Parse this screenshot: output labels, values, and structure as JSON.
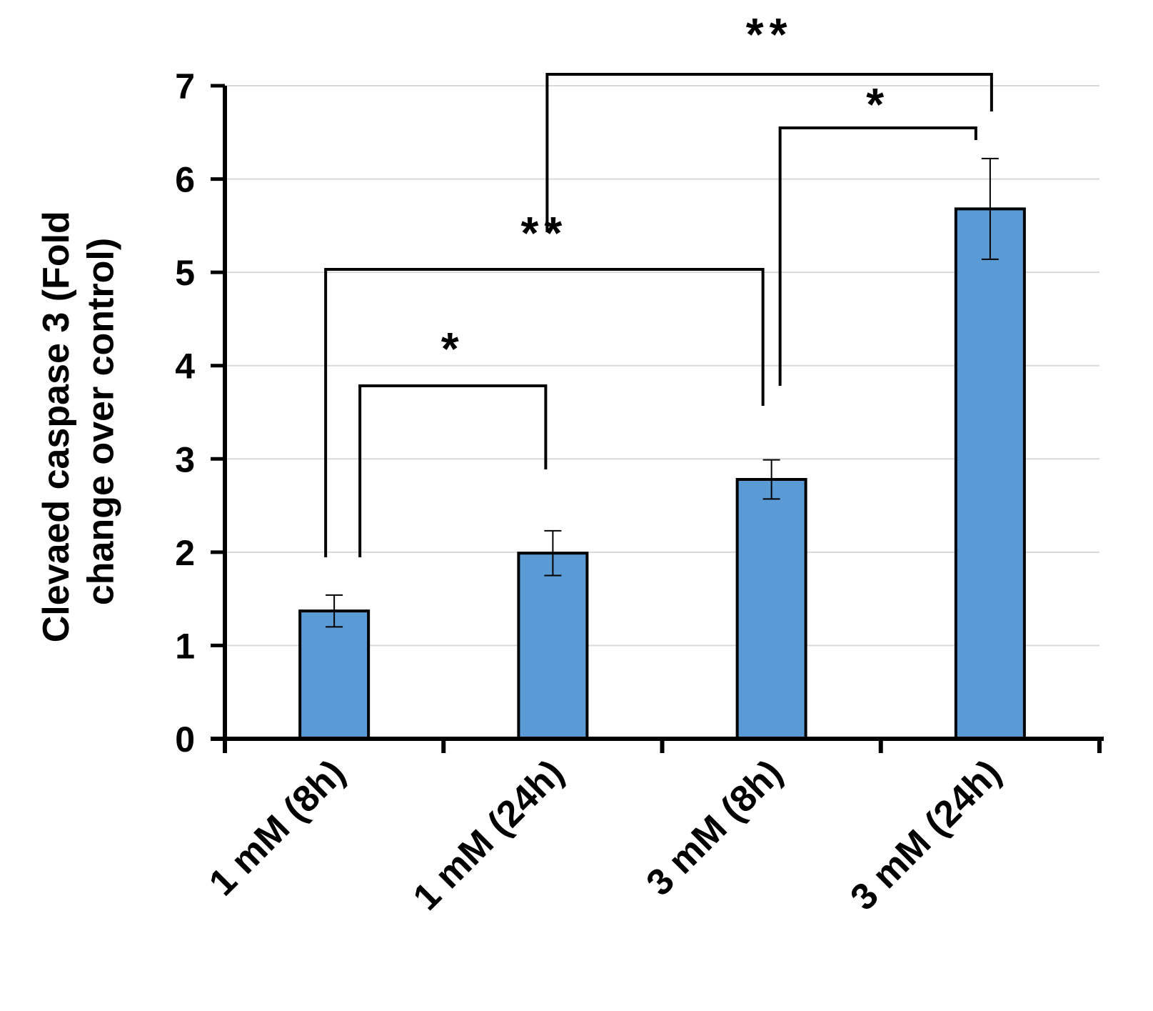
{
  "chart_data": {
    "type": "bar",
    "title": "",
    "xlabel": "",
    "ylabel_lines": [
      "Clevaed caspase 3 (Fold",
      "change over control)"
    ],
    "categories": [
      "1 mM (8h)",
      "1 mM (24h)",
      "3 mM (8h)",
      "3 mM (24h)"
    ],
    "values": [
      1.37,
      1.99,
      2.78,
      5.68
    ],
    "errors": [
      0.17,
      0.24,
      0.21,
      0.54
    ],
    "ylim": [
      0,
      7
    ],
    "yticks": [
      "0",
      "1",
      "2",
      "3",
      "4",
      "5",
      "6",
      "7"
    ],
    "grid": true,
    "colors": {
      "bar": "#5b9bd5",
      "bar_edge": "#000000",
      "grid": "#d9d9d9",
      "axis": "#000000"
    },
    "significance": [
      {
        "from": 0,
        "to": 1,
        "label": "*"
      },
      {
        "from": 0,
        "to": 2,
        "label": "**"
      },
      {
        "from": 2,
        "to": 3,
        "label": "*"
      },
      {
        "from": 1,
        "to": 3,
        "label": "**"
      }
    ]
  }
}
